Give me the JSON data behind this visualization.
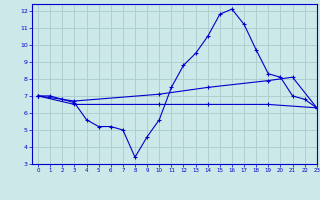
{
  "background_color": "#cce8e8",
  "grid_color": "#aacccc",
  "line_color": "#0000cc",
  "axis_bg": "#0000aa",
  "text_color": "#ffffff",
  "xlim": [
    -0.5,
    23
  ],
  "ylim": [
    3,
    12.4
  ],
  "yticks": [
    3,
    4,
    5,
    6,
    7,
    8,
    9,
    10,
    11,
    12
  ],
  "xticks": [
    0,
    1,
    2,
    3,
    4,
    5,
    6,
    7,
    8,
    9,
    10,
    11,
    12,
    13,
    14,
    15,
    16,
    17,
    18,
    19,
    20,
    21,
    22,
    23
  ],
  "line1_x": [
    0,
    1,
    2,
    3,
    4,
    5,
    6,
    7,
    8,
    9,
    10,
    11,
    12,
    13,
    14,
    15,
    16,
    17,
    18,
    19,
    20,
    21,
    22,
    23
  ],
  "line1_y": [
    7.0,
    7.0,
    6.8,
    6.6,
    5.6,
    5.2,
    5.2,
    5.0,
    3.4,
    4.6,
    5.6,
    7.5,
    8.8,
    9.5,
    10.5,
    11.8,
    12.1,
    11.2,
    9.7,
    8.3,
    8.1,
    7.0,
    6.8,
    6.3
  ],
  "line2_x": [
    0,
    3,
    10,
    14,
    19,
    21,
    23
  ],
  "line2_y": [
    7.0,
    6.7,
    7.1,
    7.5,
    7.9,
    8.1,
    6.3
  ],
  "line3_x": [
    0,
    3,
    10,
    14,
    19,
    23
  ],
  "line3_y": [
    7.0,
    6.5,
    6.5,
    6.5,
    6.5,
    6.3
  ]
}
